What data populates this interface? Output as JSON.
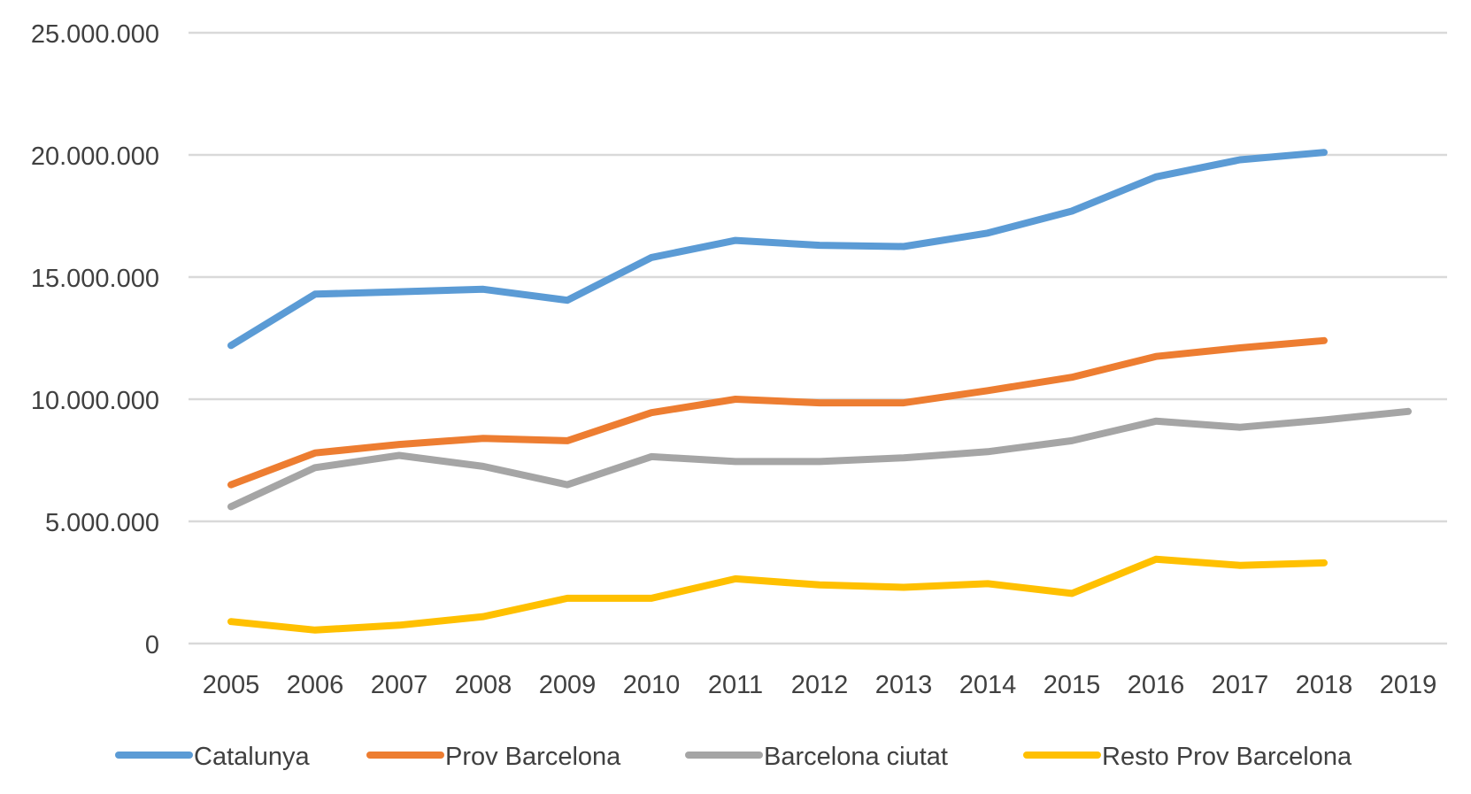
{
  "chart_data": {
    "type": "line",
    "title": "",
    "xlabel": "",
    "ylabel": "",
    "ylim": [
      0,
      25000000
    ],
    "grid": true,
    "legend_position": "bottom",
    "categories": [
      "2005",
      "2006",
      "2007",
      "2008",
      "2009",
      "2010",
      "2011",
      "2012",
      "2013",
      "2014",
      "2015",
      "2016",
      "2017",
      "2018",
      "2019"
    ],
    "y_ticks": [
      {
        "value": 0,
        "label": "0"
      },
      {
        "value": 5000000,
        "label": "5.000.000"
      },
      {
        "value": 10000000,
        "label": "10.000.000"
      },
      {
        "value": 15000000,
        "label": "15.000.000"
      },
      {
        "value": 20000000,
        "label": "20.000.000"
      },
      {
        "value": 25000000,
        "label": "25.000.000"
      }
    ],
    "series": [
      {
        "name": "Catalunya",
        "color": "#5b9bd5",
        "values": [
          12200000,
          14300000,
          14400000,
          14500000,
          14050000,
          15800000,
          16500000,
          16300000,
          16250000,
          16800000,
          17700000,
          19100000,
          19800000,
          20100000,
          null
        ]
      },
      {
        "name": "Prov Barcelona",
        "color": "#ed7d31",
        "values": [
          6500000,
          7800000,
          8150000,
          8400000,
          8300000,
          9450000,
          10000000,
          9850000,
          9850000,
          10350000,
          10900000,
          11750000,
          12100000,
          12400000,
          null
        ]
      },
      {
        "name": "Barcelona ciutat",
        "color": "#a5a5a5",
        "values": [
          5600000,
          7200000,
          7700000,
          7250000,
          6500000,
          7650000,
          7450000,
          7450000,
          7600000,
          7850000,
          8300000,
          9100000,
          8850000,
          9150000,
          9500000
        ]
      },
      {
        "name": "Resto Prov Barcelona",
        "color": "#ffc000",
        "values": [
          900000,
          550000,
          750000,
          1100000,
          1850000,
          1850000,
          2650000,
          2400000,
          2300000,
          2450000,
          2050000,
          3450000,
          3200000,
          3300000,
          null
        ]
      }
    ]
  }
}
